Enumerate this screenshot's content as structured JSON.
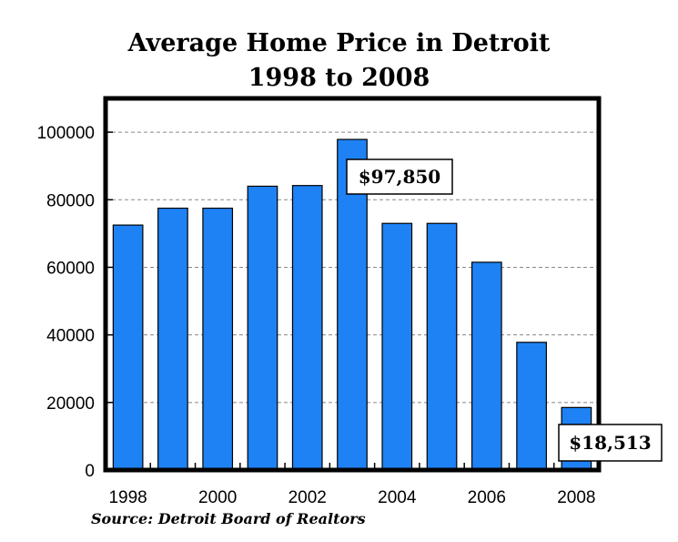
{
  "chart_data": {
    "type": "bar",
    "title": "Average Home Price in Detroit",
    "subtitle": "1998 to 2008",
    "categories": [
      "1998",
      "1999",
      "2000",
      "2001",
      "2002",
      "2003",
      "2004",
      "2005",
      "2006",
      "2007",
      "2008"
    ],
    "values": [
      72500,
      77500,
      77500,
      84000,
      84200,
      97850,
      73000,
      73000,
      61500,
      37800,
      18513
    ],
    "ylim": [
      0,
      110000
    ],
    "yticks": [
      0,
      20000,
      40000,
      60000,
      80000,
      100000
    ],
    "ytick_labels": [
      "0",
      "20000",
      "40000",
      "60000",
      "80000",
      "100000"
    ],
    "xtick_labels": [
      "1998",
      "2000",
      "2002",
      "2004",
      "2006",
      "2008"
    ],
    "xlabel": "",
    "ylabel": "",
    "grid": "horizontal-dashed",
    "bar_color": "#1e82f5",
    "annotations": [
      {
        "text": "$97,850",
        "category": "2003"
      },
      {
        "text": "$18,513",
        "category": "2008"
      }
    ],
    "source": "Source: Detroit Board of Realtors"
  }
}
